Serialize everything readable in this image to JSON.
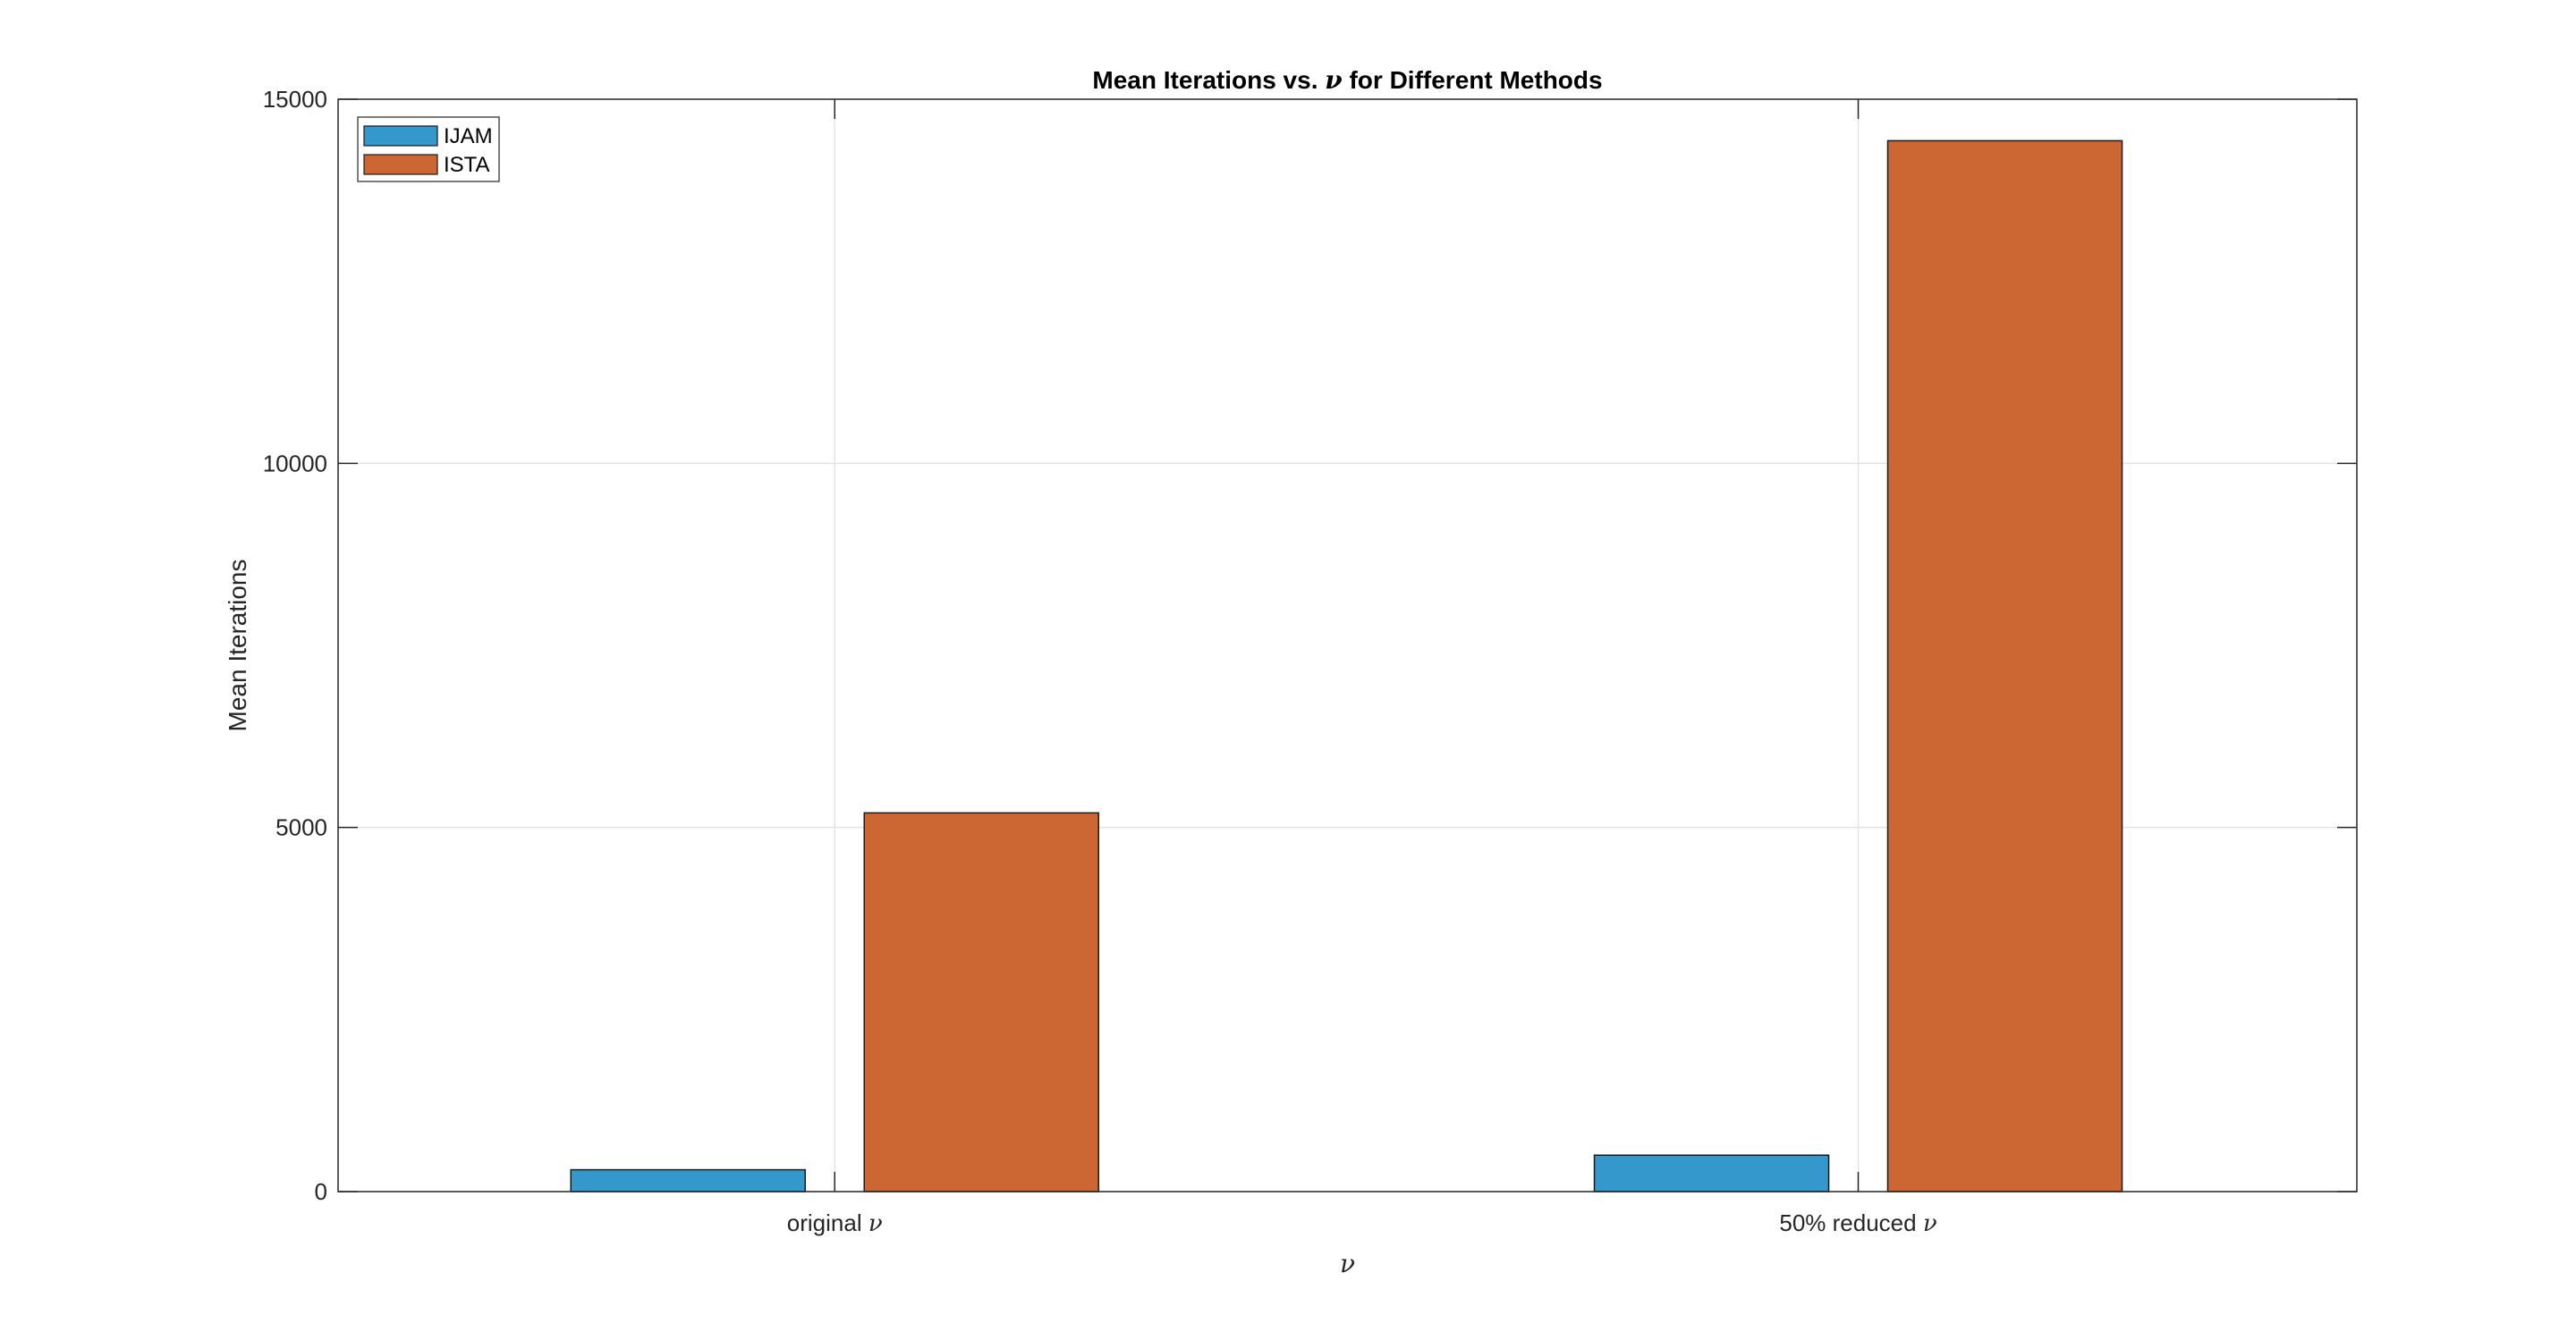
{
  "chart_data": {
    "type": "bar",
    "title": "Mean Iterations vs. ν for Different Methods",
    "xlabel": "ν",
    "ylabel": "Mean Iterations",
    "categories": [
      "original ν",
      "50% reduced ν"
    ],
    "series": [
      {
        "name": "IJAM",
        "values": [
          300,
          500
        ],
        "color": "#3498cc"
      },
      {
        "name": "ISTA",
        "values": [
          5200,
          14430
        ],
        "color": "#cc6633"
      }
    ],
    "ylim": [
      0,
      15000
    ],
    "yticks": [
      0,
      5000,
      10000,
      15000
    ],
    "ytick_labels": [
      "0",
      "5000",
      "10000",
      "15000"
    ],
    "grid": true,
    "legend_position": "top-left"
  }
}
